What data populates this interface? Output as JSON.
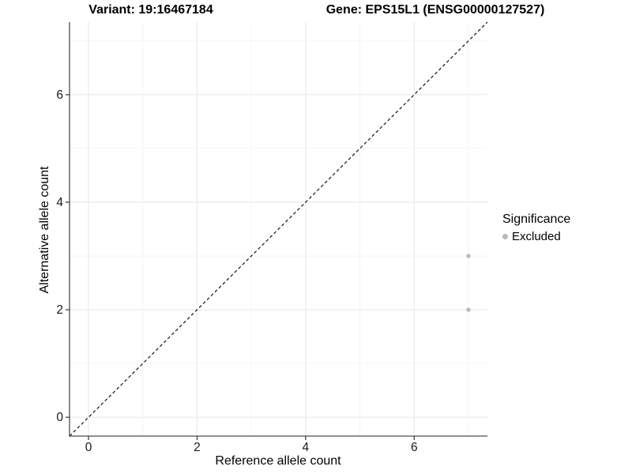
{
  "titles": {
    "variant": "Variant: 19:16467184",
    "gene": "Gene: EPS15L1 (ENSG00000127527)"
  },
  "chart_data": {
    "type": "scatter",
    "title": "Variant: 19:16467184 — Gene: EPS15L1 (ENSG00000127527)",
    "xlabel": "Reference allele count",
    "ylabel": "Alternative allele count",
    "xlim": [
      -0.35,
      7.35
    ],
    "ylim": [
      -0.35,
      7.35
    ],
    "x_ticks": [
      0,
      2,
      4,
      6
    ],
    "y_ticks": [
      0,
      2,
      4,
      6
    ],
    "x_minor": [
      1,
      3,
      5,
      7
    ],
    "y_minor": [
      1,
      3,
      5,
      7
    ],
    "grid": "on",
    "series": [
      {
        "name": "Excluded",
        "points": [
          {
            "x": 7,
            "y": 3
          },
          {
            "x": 7,
            "y": 2
          }
        ]
      }
    ],
    "identity_line": {
      "show": true,
      "style": "dashed",
      "from": [
        -0.35,
        -0.35
      ],
      "to": [
        7.35,
        7.35
      ]
    },
    "legend": {
      "title": "Significance",
      "position": "right",
      "entries": [
        {
          "label": "Excluded",
          "color": "#b9b9b9"
        }
      ]
    },
    "colors": {
      "point": "#b9b9b9",
      "grid_major": "#e8e8e8",
      "grid_minor": "#f3f3f3",
      "axis_line": "#4d4d4d",
      "tick_mark": "#333333",
      "tick_label": "#1a1a1a",
      "dashed_line": "#000000",
      "background": "#ffffff"
    }
  }
}
